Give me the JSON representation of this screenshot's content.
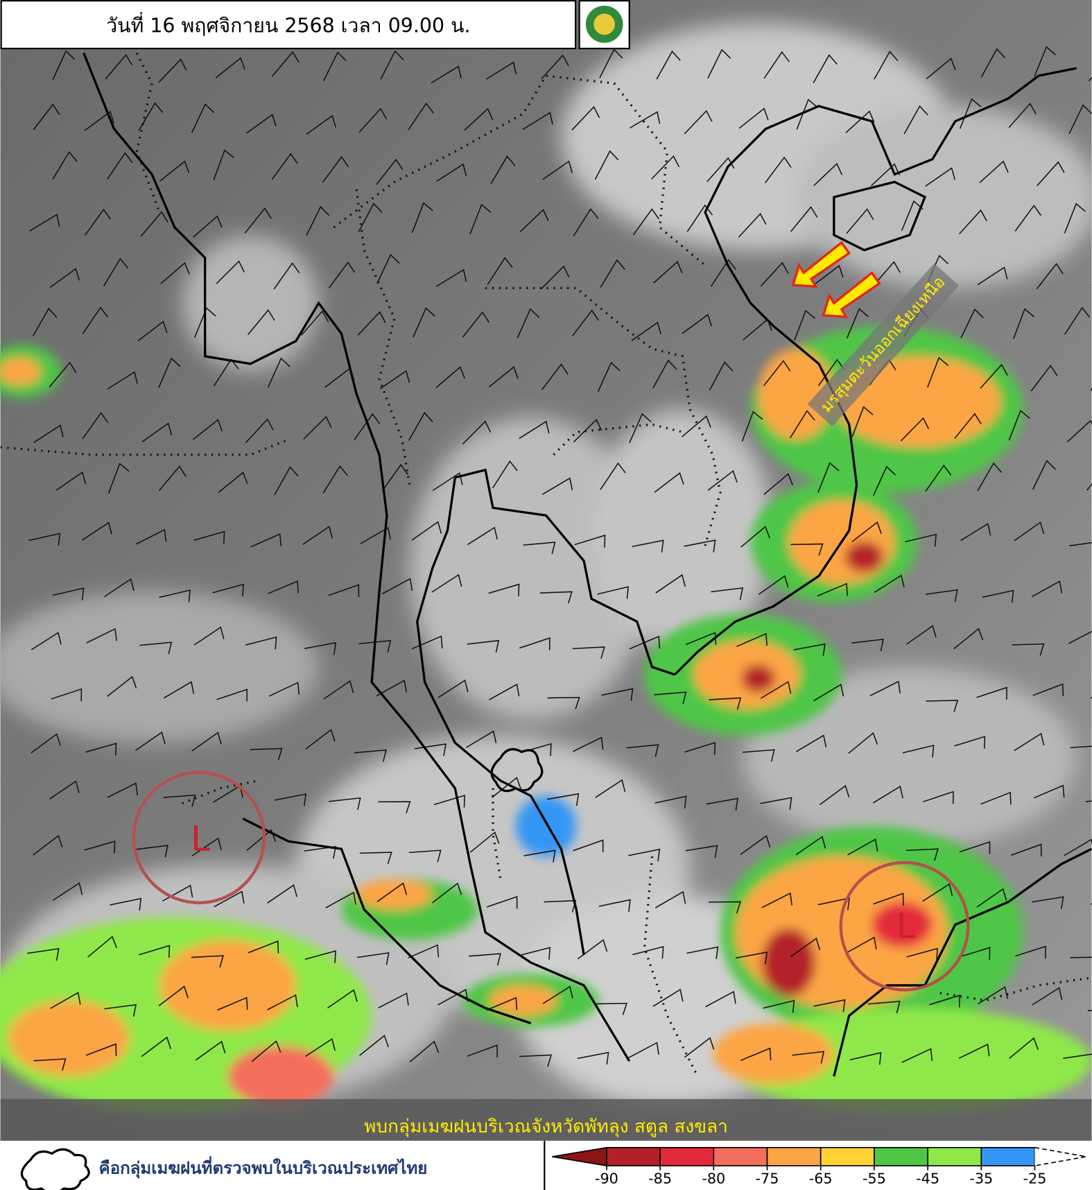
{
  "header": {
    "title": "วันที่ 16 พฤศจิกายน 2568 เวลา 09.00 น."
  },
  "annotations": {
    "monsoon": "มรสุมตะวันออกเฉียงเหนือ",
    "lows": [
      "L",
      "L"
    ],
    "banner": "พบกลุ่มเมฆฝนบริเวณจังหวัดพัทลุง สตูล สงขลา"
  },
  "legend": {
    "cloud_label": "คือกลุ่มเมฆฝนที่ตรวจพบในบริเวณประเทศไทย",
    "colorbar": {
      "ticks": [
        -90,
        -85,
        -80,
        -75,
        -65,
        -55,
        -45,
        -35,
        -25
      ],
      "low_end_color": "#8b1414",
      "colors": [
        "#b3202a",
        "#e3293c",
        "#f46e5c",
        "#fca545",
        "#ffd335",
        "#4fc646",
        "#8fe84a",
        "#3596f5"
      ]
    }
  }
}
